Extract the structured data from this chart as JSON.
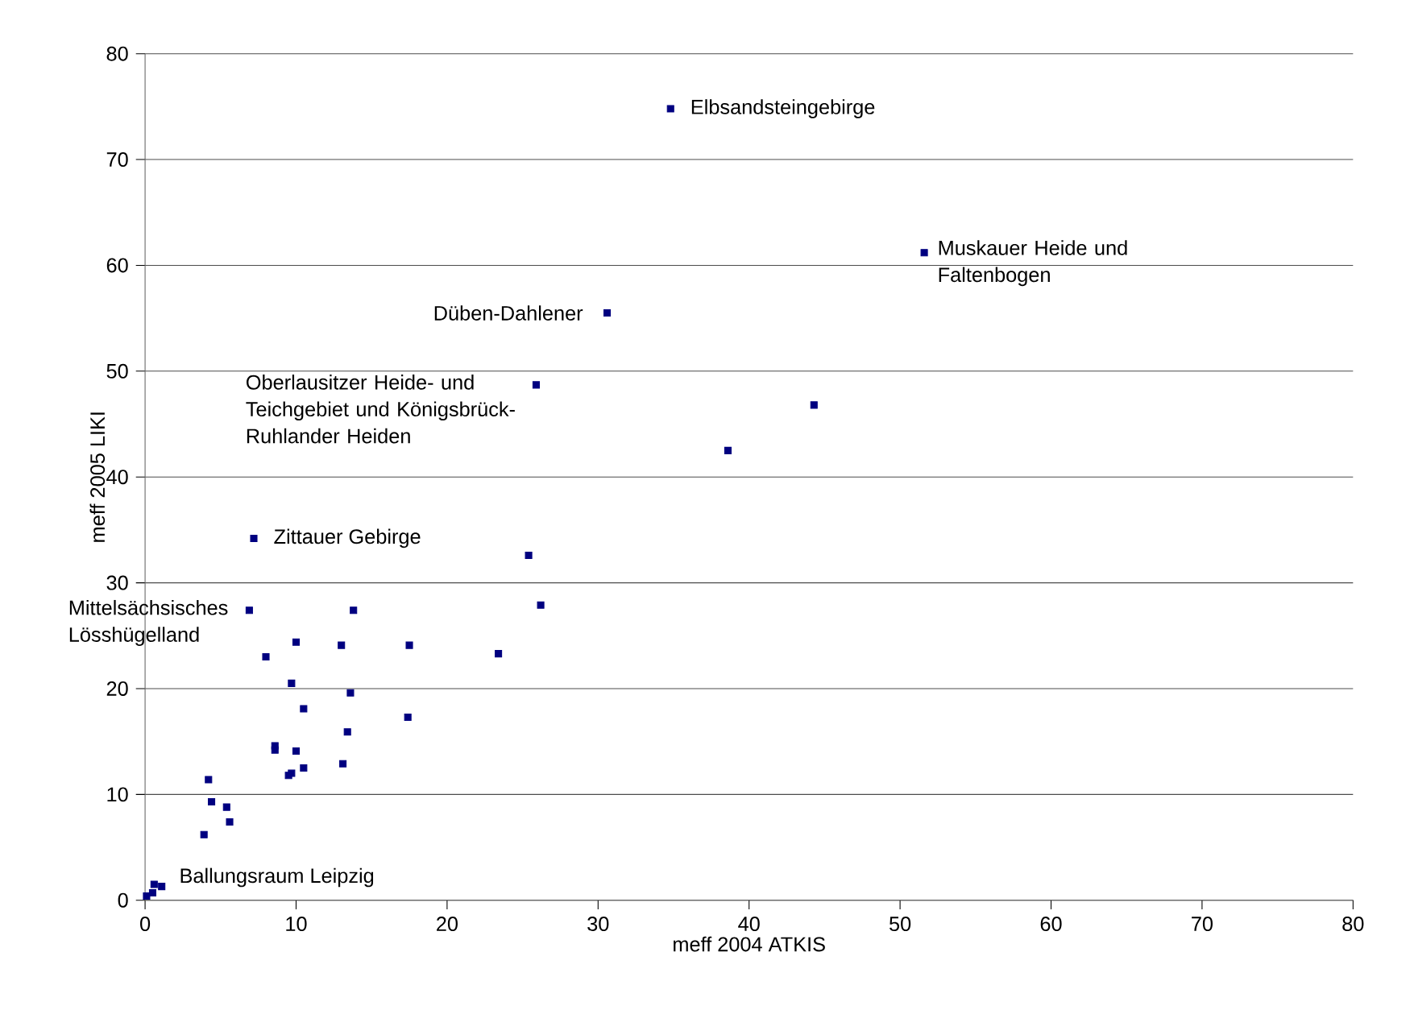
{
  "chart_data": {
    "type": "scatter",
    "xlabel": "meff 2004 ATKIS",
    "ylabel": "meff 2005 LIKI",
    "xlim": [
      0,
      80
    ],
    "ylim": [
      0,
      80
    ],
    "xticks": [
      0,
      10,
      20,
      30,
      40,
      50,
      60,
      70,
      80
    ],
    "yticks": [
      0,
      10,
      20,
      30,
      40,
      50,
      60,
      70,
      80
    ],
    "grid": "y",
    "marker": "square",
    "series": [
      {
        "color": "#000080",
        "x": [
          34.8,
          51.6,
          30.6,
          25.9,
          44.3,
          38.6,
          7.2,
          25.4,
          6.9,
          13.8,
          26.2,
          10.0,
          13.0,
          17.5,
          8.0,
          23.4,
          9.7,
          13.6,
          10.5,
          17.4,
          13.4,
          8.6,
          8.6,
          10.0,
          10.5,
          13.1,
          9.5,
          9.7,
          4.2,
          4.4,
          5.4,
          5.6,
          3.9,
          0.1,
          0.6,
          1.1,
          0.5
        ],
        "values": [
          74.8,
          61.2,
          55.5,
          48.7,
          46.8,
          42.5,
          34.2,
          32.6,
          27.4,
          27.4,
          27.9,
          24.4,
          24.1,
          24.1,
          23.0,
          23.3,
          20.5,
          19.6,
          18.1,
          17.3,
          15.9,
          14.6,
          14.2,
          14.1,
          12.5,
          12.9,
          11.8,
          12.0,
          11.4,
          9.3,
          8.8,
          7.4,
          6.2,
          0.4,
          1.5,
          1.3,
          0.7
        ]
      }
    ],
    "annotations": [
      {
        "text": "Elbsandsteingebirge",
        "x": 34.8,
        "y": 74.8
      },
      {
        "text": "Muskauer Heide und Faltenbogen",
        "x": 51.6,
        "y": 61.2
      },
      {
        "text": "Düben-Dahlener",
        "x": 30.6,
        "y": 55.5
      },
      {
        "text": "Oberlausitzer Heide- und Teichgebiet und Königsbrück-Ruhlander Heiden",
        "x": 25.9,
        "y": 48.7
      },
      {
        "text": "Zittauer Gebirge",
        "x": 7.2,
        "y": 34.2
      },
      {
        "text": "Mittelsächsisches Lösshügelland",
        "x": 6.9,
        "y": 27.4
      },
      {
        "text": "Ballungsraum Leipzig",
        "x": 0.1,
        "y": 0.4
      }
    ]
  }
}
